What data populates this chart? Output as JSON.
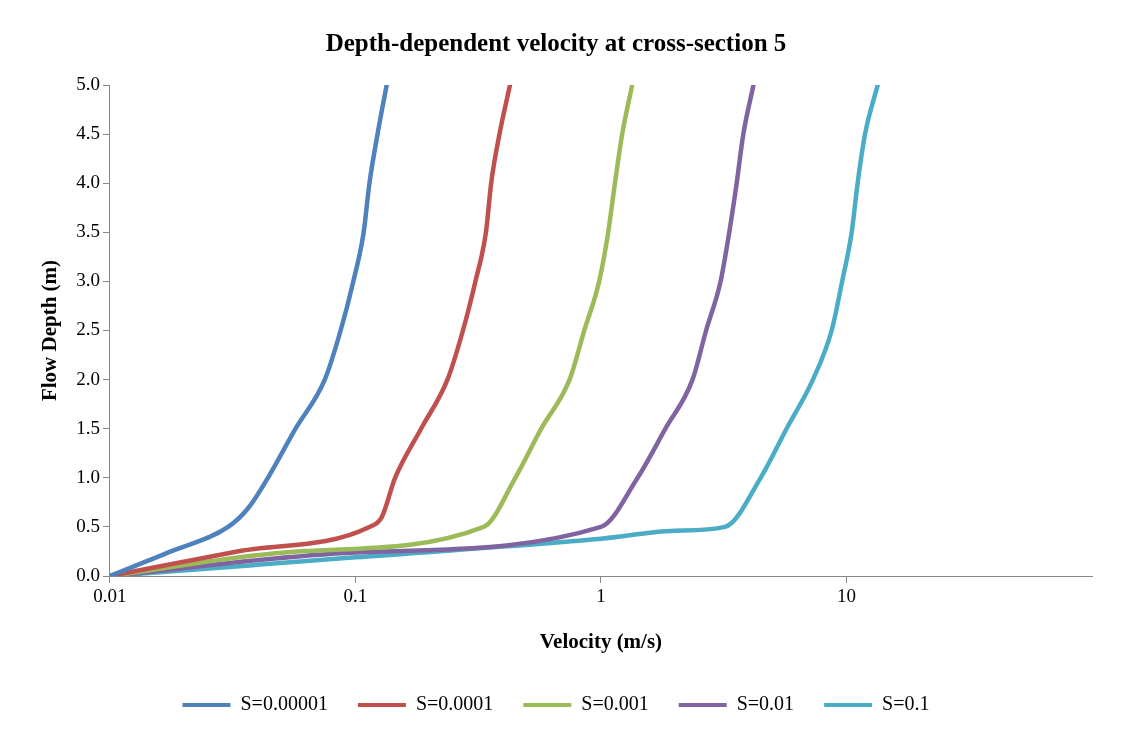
{
  "chart_data": {
    "type": "line",
    "title": "Depth-dependent velocity at cross-section 5",
    "xlabel": "Velocity (m/s)",
    "ylabel": "Flow Depth (m)",
    "log": "x",
    "xlim": [
      0.01,
      100
    ],
    "xticks": [
      0.01,
      0.1,
      1,
      10
    ],
    "ylim": [
      0,
      5
    ],
    "yticks": [
      {
        "value": 0,
        "label": "0.0"
      },
      0.5,
      {
        "value": 1,
        "label": "1.0"
      },
      1.5,
      {
        "value": 2,
        "label": "2.0"
      },
      2.5,
      {
        "value": 3,
        "label": "3.0"
      },
      3.5,
      {
        "value": 4,
        "label": "4.0"
      },
      4.5,
      {
        "value": 5,
        "label": "5.0"
      }
    ],
    "grid": false,
    "legend": "bottom",
    "marker": "none",
    "line_style": "solid",
    "series": [
      {
        "name": "S=0.00001",
        "color": "#4f81bd",
        "x": [
          0.01,
          0.0177,
          0.0303,
          0.0368,
          0.044,
          0.057,
          0.075,
          0.087,
          0.098,
          0.108,
          0.114,
          0.123,
          0.134
        ],
        "values": [
          0,
          0.25,
          0.5,
          0.7,
          1,
          1.5,
          2,
          2.5,
          3,
          3.5,
          4,
          4.5,
          5
        ]
      },
      {
        "name": "S=0.0001",
        "color": "#c0504d",
        "x": [
          0.01,
          0.033,
          0.114,
          0.128,
          0.145,
          0.185,
          0.237,
          0.274,
          0.308,
          0.34,
          0.357,
          0.386,
          0.426
        ],
        "values": [
          0,
          0.25,
          0.5,
          0.6,
          1,
          1.5,
          2,
          2.5,
          3,
          3.5,
          4,
          4.5,
          5
        ]
      },
      {
        "name": "S=0.001",
        "color": "#9bbb59",
        "x": [
          0.01,
          0.058,
          0.333,
          0.448,
          0.571,
          0.745,
          0.855,
          0.983,
          1.07,
          1.14,
          1.22,
          1.34
        ],
        "values": [
          0,
          0.25,
          0.5,
          1,
          1.5,
          2,
          2.5,
          3,
          3.5,
          4,
          4.5,
          5
        ]
      },
      {
        "name": "S=0.01",
        "color": "#8064a2",
        "x": [
          0.01,
          0.1,
          1.0,
          1.41,
          1.83,
          2.36,
          2.68,
          3.07,
          3.33,
          3.57,
          3.8,
          4.18
        ],
        "values": [
          0,
          0.24,
          0.5,
          1,
          1.5,
          2,
          2.5,
          3,
          3.5,
          4,
          4.5,
          5
        ]
      },
      {
        "name": "S=0.1",
        "color": "#4bacc6",
        "x": [
          0.01,
          0.1,
          1,
          2,
          3.2,
          4.47,
          5.7,
          7.3,
          8.7,
          9.6,
          10.5,
          11.1,
          11.9,
          13.4
        ],
        "values": [
          0,
          0.19,
          0.38,
          0.46,
          0.5,
          1,
          1.5,
          2,
          2.5,
          3,
          3.5,
          4,
          4.5,
          5
        ]
      }
    ]
  }
}
